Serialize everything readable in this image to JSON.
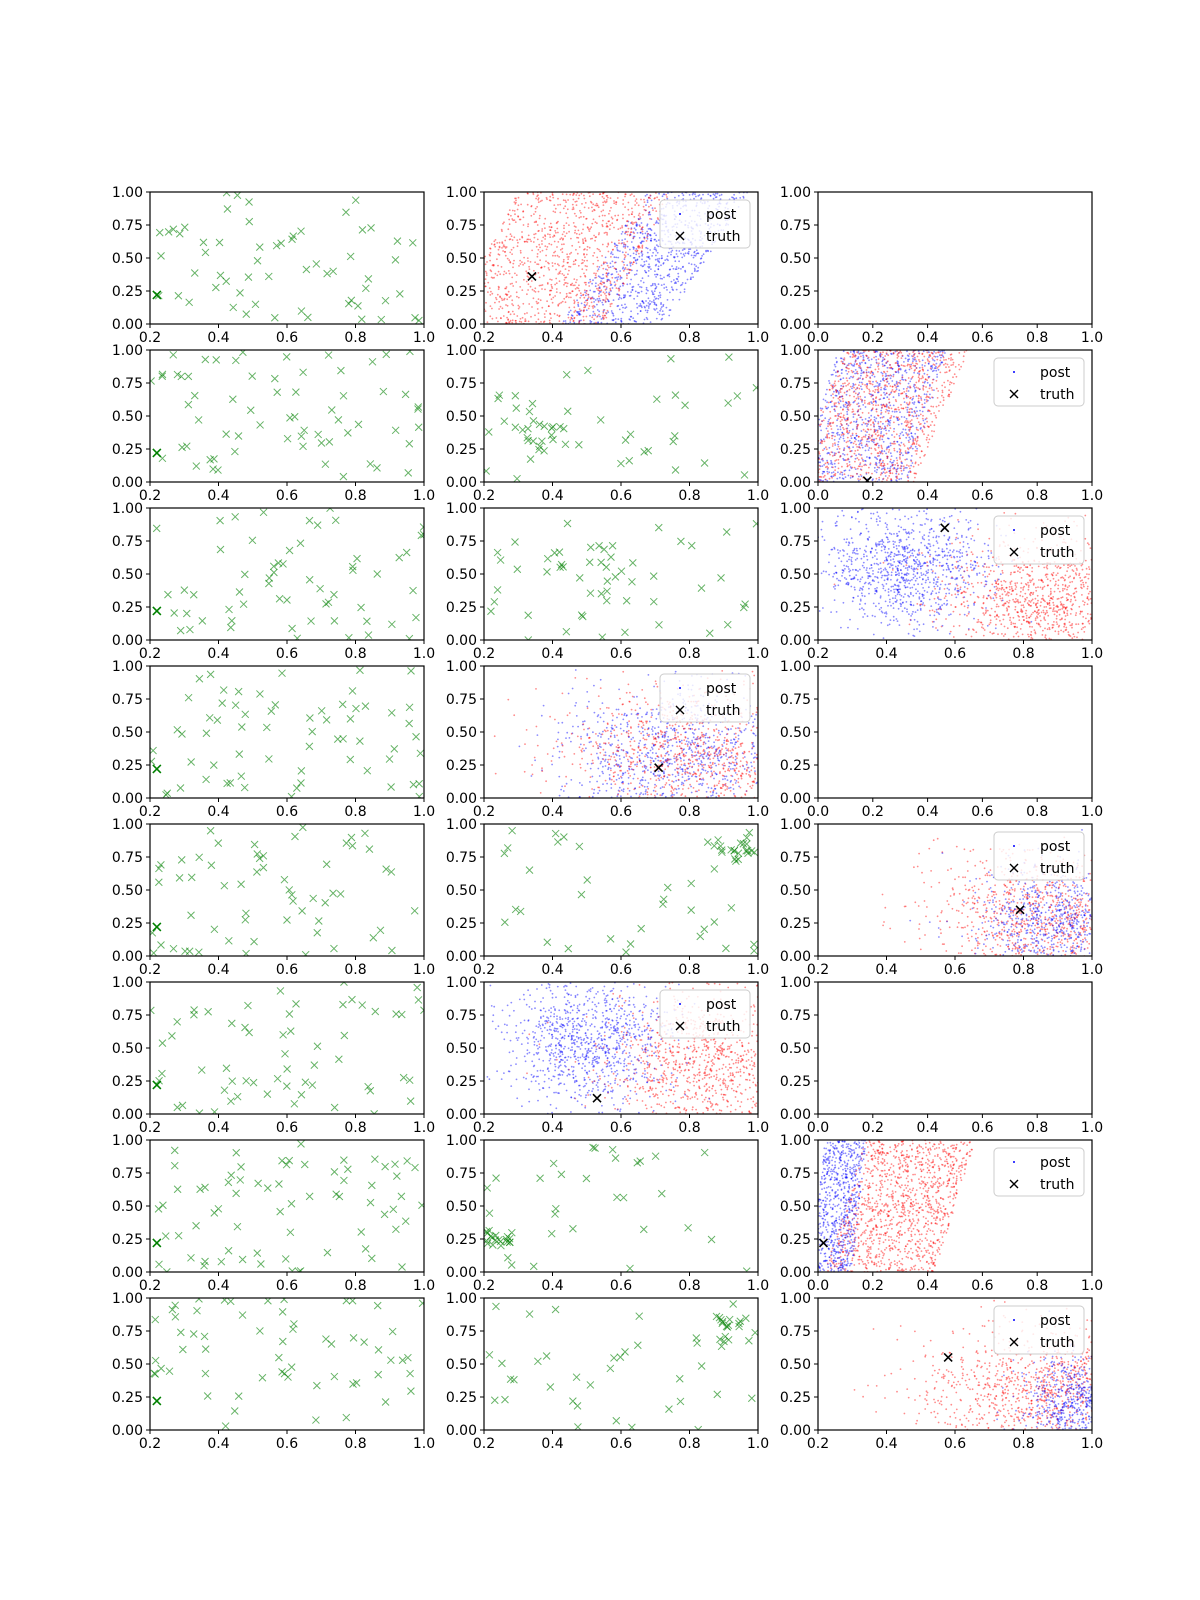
{
  "figure": {
    "type": "scatter-grid",
    "rows": 8,
    "cols": 3
  },
  "colors": {
    "samples": "#008000",
    "truth": "#000000",
    "post_blue": "#0000ff",
    "post_red": "#ff0000",
    "axes": "#000000",
    "background": "#ffffff"
  },
  "legend": {
    "post_label": "post",
    "truth_label": "truth"
  },
  "chart_data": [
    {
      "row": 0,
      "col": 0,
      "type": "scatter",
      "xlim": [
        0.2,
        1.0
      ],
      "ylim": [
        0.0,
        1.0
      ],
      "xticks": [
        "0.2",
        "0.4",
        "0.6",
        "0.8",
        "1.0"
      ],
      "yticks": [
        "0.00",
        "0.25",
        "0.50",
        "0.75",
        "1.00"
      ],
      "series": [
        {
          "name": "samples",
          "color": "#008000",
          "n": 60,
          "seed": 11
        }
      ],
      "truth": [
        0.22,
        0.22
      ],
      "legend": false
    },
    {
      "row": 0,
      "col": 1,
      "type": "scatter",
      "xlim": [
        0.2,
        1.0
      ],
      "ylim": [
        0.0,
        1.0
      ],
      "xticks": [
        "0.2",
        "0.4",
        "0.6",
        "0.8",
        "1.0"
      ],
      "yticks": [
        "0.00",
        "0.25",
        "0.50",
        "0.75",
        "1.00"
      ],
      "series": [
        {
          "name": "post",
          "color": "#0000ff",
          "n": 900,
          "kind": "band",
          "seed": 21,
          "xmin": 0.55,
          "xmax": 0.85,
          "tilt": 0.25
        },
        {
          "name": "post",
          "color": "#ff0000",
          "n": 1100,
          "kind": "band",
          "seed": 22,
          "xmin": 0.2,
          "xmax": 0.65,
          "tilt": 0.2
        }
      ],
      "truth": [
        0.34,
        0.36
      ],
      "legend": true
    },
    {
      "row": 0,
      "col": 2,
      "type": "empty",
      "xlim": [
        0.0,
        1.0
      ],
      "ylim": [
        0.0,
        1.0
      ],
      "xticks": [
        "0.0",
        "0.2",
        "0.4",
        "0.6",
        "0.8",
        "1.0"
      ],
      "yticks": [
        "0.00",
        "0.25",
        "0.50",
        "0.75",
        "1.00"
      ],
      "series": [],
      "legend": false
    },
    {
      "row": 1,
      "col": 0,
      "type": "scatter",
      "xlim": [
        0.2,
        1.0
      ],
      "ylim": [
        0.0,
        1.0
      ],
      "xticks": [
        "0.2",
        "0.4",
        "0.6",
        "0.8",
        "1.0"
      ],
      "yticks": [
        "0.00",
        "0.25",
        "0.50",
        "0.75",
        "1.00"
      ],
      "series": [
        {
          "name": "samples",
          "color": "#008000",
          "n": 65,
          "seed": 31
        }
      ],
      "truth": [
        0.22,
        0.22
      ],
      "legend": false
    },
    {
      "row": 1,
      "col": 1,
      "type": "scatter",
      "xlim": [
        0.2,
        1.0
      ],
      "ylim": [
        0.0,
        1.0
      ],
      "xticks": [
        "0.2",
        "0.4",
        "0.6",
        "0.8",
        "1.0"
      ],
      "yticks": [
        "0.00",
        "0.25",
        "0.50",
        "0.75",
        "1.00"
      ],
      "series": [
        {
          "name": "samples",
          "color": "#008000",
          "n": 55,
          "seed": 32,
          "cluster": [
            0.38,
            0.38,
            0.06,
            0.08
          ]
        }
      ],
      "legend": false
    },
    {
      "row": 1,
      "col": 2,
      "type": "scatter",
      "xlim": [
        0.0,
        1.0
      ],
      "ylim": [
        0.0,
        1.0
      ],
      "xticks": [
        "0.0",
        "0.2",
        "0.4",
        "0.6",
        "0.8",
        "1.0"
      ],
      "yticks": [
        "0.00",
        "0.25",
        "0.50",
        "0.75",
        "1.00"
      ],
      "series": [
        {
          "name": "post",
          "color": "#0000ff",
          "n": 900,
          "kind": "band",
          "seed": 41,
          "xmin": 0.0,
          "xmax": 0.4,
          "tilt": 0.15
        },
        {
          "name": "post",
          "color": "#ff0000",
          "n": 1000,
          "kind": "band",
          "seed": 42,
          "xmin": 0.0,
          "xmax": 0.45,
          "tilt": 0.2
        }
      ],
      "truth": [
        0.18,
        0.01
      ],
      "legend": true
    },
    {
      "row": 2,
      "col": 0,
      "type": "scatter",
      "xlim": [
        0.2,
        1.0
      ],
      "ylim": [
        0.0,
        1.0
      ],
      "xticks": [
        "0.2",
        "0.4",
        "0.6",
        "0.8",
        "1.0"
      ],
      "yticks": [
        "0.00",
        "0.25",
        "0.50",
        "0.75",
        "1.00"
      ],
      "series": [
        {
          "name": "samples",
          "color": "#008000",
          "n": 60,
          "seed": 51
        }
      ],
      "truth": [
        0.22,
        0.22
      ],
      "legend": false
    },
    {
      "row": 2,
      "col": 1,
      "type": "scatter",
      "xlim": [
        0.2,
        1.0
      ],
      "ylim": [
        0.0,
        1.0
      ],
      "xticks": [
        "0.2",
        "0.4",
        "0.6",
        "0.8",
        "1.0"
      ],
      "yticks": [
        "0.00",
        "0.25",
        "0.50",
        "0.75",
        "1.00"
      ],
      "series": [
        {
          "name": "samples",
          "color": "#008000",
          "n": 55,
          "seed": 52,
          "cluster": [
            0.5,
            0.55,
            0.08,
            0.1
          ]
        }
      ],
      "legend": false
    },
    {
      "row": 2,
      "col": 2,
      "type": "scatter",
      "xlim": [
        0.2,
        1.0
      ],
      "ylim": [
        0.0,
        1.0
      ],
      "xticks": [
        "0.2",
        "0.4",
        "0.6",
        "0.8",
        "1.0"
      ],
      "yticks": [
        "0.00",
        "0.25",
        "0.50",
        "0.75",
        "1.00"
      ],
      "series": [
        {
          "name": "post",
          "color": "#ff0000",
          "n": 1100,
          "kind": "blob",
          "seed": 61,
          "cx": 0.85,
          "cy": 0.3,
          "sx": 0.15,
          "sy": 0.25
        },
        {
          "name": "post",
          "color": "#0000ff",
          "n": 1000,
          "kind": "blob",
          "seed": 62,
          "cx": 0.45,
          "cy": 0.55,
          "sx": 0.12,
          "sy": 0.22
        }
      ],
      "truth": [
        0.57,
        0.85
      ],
      "legend": true
    },
    {
      "row": 3,
      "col": 0,
      "type": "scatter",
      "xlim": [
        0.2,
        1.0
      ],
      "ylim": [
        0.0,
        1.0
      ],
      "xticks": [
        "0.2",
        "0.4",
        "0.6",
        "0.8",
        "1.0"
      ],
      "yticks": [
        "0.00",
        "0.25",
        "0.50",
        "0.75",
        "1.00"
      ],
      "series": [
        {
          "name": "samples",
          "color": "#008000",
          "n": 65,
          "seed": 71
        }
      ],
      "truth": [
        0.22,
        0.22
      ],
      "legend": false
    },
    {
      "row": 3,
      "col": 1,
      "type": "scatter",
      "xlim": [
        0.2,
        1.0
      ],
      "ylim": [
        0.0,
        1.0
      ],
      "xticks": [
        "0.2",
        "0.4",
        "0.6",
        "0.8",
        "1.0"
      ],
      "yticks": [
        "0.00",
        "0.25",
        "0.50",
        "0.75",
        "1.00"
      ],
      "series": [
        {
          "name": "post",
          "color": "#0000ff",
          "n": 900,
          "kind": "blob",
          "seed": 81,
          "cx": 0.75,
          "cy": 0.35,
          "sx": 0.16,
          "sy": 0.25
        },
        {
          "name": "post",
          "color": "#ff0000",
          "n": 1000,
          "kind": "blob",
          "seed": 82,
          "cx": 0.8,
          "cy": 0.3,
          "sx": 0.2,
          "sy": 0.27
        }
      ],
      "truth": [
        0.71,
        0.23
      ],
      "legend": true
    },
    {
      "row": 3,
      "col": 2,
      "type": "empty",
      "xlim": [
        0.0,
        1.0
      ],
      "ylim": [
        0.0,
        1.0
      ],
      "xticks": [
        "0.0",
        "0.2",
        "0.4",
        "0.6",
        "0.8",
        "1.0"
      ],
      "yticks": [
        "0.00",
        "0.25",
        "0.50",
        "0.75",
        "1.00"
      ],
      "series": [],
      "legend": false
    },
    {
      "row": 4,
      "col": 0,
      "type": "scatter",
      "xlim": [
        0.2,
        1.0
      ],
      "ylim": [
        0.0,
        1.0
      ],
      "xticks": [
        "0.2",
        "0.4",
        "0.6",
        "0.8",
        "1.0"
      ],
      "yticks": [
        "0.00",
        "0.25",
        "0.50",
        "0.75",
        "1.00"
      ],
      "series": [
        {
          "name": "samples",
          "color": "#008000",
          "n": 60,
          "seed": 91
        }
      ],
      "truth": [
        0.22,
        0.22
      ],
      "legend": false
    },
    {
      "row": 4,
      "col": 1,
      "type": "scatter",
      "xlim": [
        0.2,
        1.0
      ],
      "ylim": [
        0.0,
        1.0
      ],
      "xticks": [
        "0.2",
        "0.4",
        "0.6",
        "0.8",
        "1.0"
      ],
      "yticks": [
        "0.00",
        "0.25",
        "0.50",
        "0.75",
        "1.00"
      ],
      "series": [
        {
          "name": "samples",
          "color": "#008000",
          "n": 55,
          "seed": 92,
          "cluster": [
            0.93,
            0.8,
            0.05,
            0.06
          ]
        }
      ],
      "legend": false
    },
    {
      "row": 4,
      "col": 2,
      "type": "scatter",
      "xlim": [
        0.2,
        1.0
      ],
      "ylim": [
        0.0,
        1.0
      ],
      "xticks": [
        "0.2",
        "0.4",
        "0.6",
        "0.8",
        "1.0"
      ],
      "yticks": [
        "0.00",
        "0.25",
        "0.50",
        "0.75",
        "1.00"
      ],
      "series": [
        {
          "name": "post",
          "color": "#ff0000",
          "n": 1000,
          "kind": "blob",
          "seed": 101,
          "cx": 0.85,
          "cy": 0.3,
          "sx": 0.16,
          "sy": 0.26
        },
        {
          "name": "post",
          "color": "#0000ff",
          "n": 800,
          "kind": "blob",
          "seed": 102,
          "cx": 0.9,
          "cy": 0.25,
          "sx": 0.12,
          "sy": 0.22
        }
      ],
      "truth": [
        0.79,
        0.35
      ],
      "legend": true
    },
    {
      "row": 5,
      "col": 0,
      "type": "scatter",
      "xlim": [
        0.2,
        1.0
      ],
      "ylim": [
        0.0,
        1.0
      ],
      "xticks": [
        "0.2",
        "0.4",
        "0.6",
        "0.8",
        "1.0"
      ],
      "yticks": [
        "0.00",
        "0.25",
        "0.50",
        "0.75",
        "1.00"
      ],
      "series": [
        {
          "name": "samples",
          "color": "#008000",
          "n": 60,
          "seed": 111
        }
      ],
      "truth": [
        0.22,
        0.22
      ],
      "legend": false
    },
    {
      "row": 5,
      "col": 1,
      "type": "scatter",
      "xlim": [
        0.2,
        1.0
      ],
      "ylim": [
        0.0,
        1.0
      ],
      "xticks": [
        "0.2",
        "0.4",
        "0.6",
        "0.8",
        "1.0"
      ],
      "yticks": [
        "0.00",
        "0.25",
        "0.50",
        "0.75",
        "1.00"
      ],
      "series": [
        {
          "name": "post",
          "color": "#ff0000",
          "n": 1100,
          "kind": "blob",
          "seed": 121,
          "cx": 0.85,
          "cy": 0.35,
          "sx": 0.15,
          "sy": 0.3
        },
        {
          "name": "post",
          "color": "#0000ff",
          "n": 1000,
          "kind": "blob",
          "seed": 122,
          "cx": 0.5,
          "cy": 0.55,
          "sx": 0.12,
          "sy": 0.25
        }
      ],
      "truth": [
        0.53,
        0.12
      ],
      "legend": true
    },
    {
      "row": 5,
      "col": 2,
      "type": "empty",
      "xlim": [
        0.0,
        1.0
      ],
      "ylim": [
        0.0,
        1.0
      ],
      "xticks": [
        "0.0",
        "0.2",
        "0.4",
        "0.6",
        "0.8",
        "1.0"
      ],
      "yticks": [
        "0.00",
        "0.25",
        "0.50",
        "0.75",
        "1.00"
      ],
      "series": [],
      "legend": false
    },
    {
      "row": 6,
      "col": 0,
      "type": "scatter",
      "xlim": [
        0.2,
        1.0
      ],
      "ylim": [
        0.0,
        1.0
      ],
      "xticks": [
        "0.2",
        "0.4",
        "0.6",
        "0.8",
        "1.0"
      ],
      "yticks": [
        "0.00",
        "0.25",
        "0.50",
        "0.75",
        "1.00"
      ],
      "series": [
        {
          "name": "samples",
          "color": "#008000",
          "n": 70,
          "seed": 131
        }
      ],
      "truth": [
        0.22,
        0.22
      ],
      "legend": false
    },
    {
      "row": 6,
      "col": 1,
      "type": "scatter",
      "xlim": [
        0.2,
        1.0
      ],
      "ylim": [
        0.0,
        1.0
      ],
      "xticks": [
        "0.2",
        "0.4",
        "0.6",
        "0.8",
        "1.0"
      ],
      "yticks": [
        "0.00",
        "0.25",
        "0.50",
        "0.75",
        "1.00"
      ],
      "series": [
        {
          "name": "samples",
          "color": "#008000",
          "n": 50,
          "seed": 132,
          "cluster": [
            0.25,
            0.25,
            0.04,
            0.03
          ]
        }
      ],
      "legend": false
    },
    {
      "row": 6,
      "col": 2,
      "type": "scatter",
      "xlim": [
        0.0,
        1.0
      ],
      "ylim": [
        0.0,
        1.0
      ],
      "xticks": [
        "0.0",
        "0.2",
        "0.4",
        "0.6",
        "0.8",
        "1.0"
      ],
      "yticks": [
        "0.00",
        "0.25",
        "0.50",
        "0.75",
        "1.00"
      ],
      "series": [
        {
          "name": "post",
          "color": "#ff0000",
          "n": 1200,
          "kind": "band",
          "seed": 141,
          "xmin": 0.1,
          "xmax": 0.5,
          "tilt": 0.15
        },
        {
          "name": "post",
          "color": "#0000ff",
          "n": 700,
          "kind": "band",
          "seed": 142,
          "xmin": 0.0,
          "xmax": 0.15,
          "tilt": 0.05
        }
      ],
      "truth": [
        0.02,
        0.22
      ],
      "legend": true
    },
    {
      "row": 7,
      "col": 0,
      "type": "scatter",
      "xlim": [
        0.2,
        1.0
      ],
      "ylim": [
        0.0,
        1.0
      ],
      "xticks": [
        "0.2",
        "0.4",
        "0.6",
        "0.8",
        "1.0"
      ],
      "yticks": [
        "0.00",
        "0.25",
        "0.50",
        "0.75",
        "1.00"
      ],
      "series": [
        {
          "name": "samples",
          "color": "#008000",
          "n": 60,
          "seed": 151
        }
      ],
      "truth": [
        0.22,
        0.22
      ],
      "legend": false
    },
    {
      "row": 7,
      "col": 1,
      "type": "scatter",
      "xlim": [
        0.2,
        1.0
      ],
      "ylim": [
        0.0,
        1.0
      ],
      "xticks": [
        "0.2",
        "0.4",
        "0.6",
        "0.8",
        "1.0"
      ],
      "yticks": [
        "0.00",
        "0.25",
        "0.50",
        "0.75",
        "1.00"
      ],
      "series": [
        {
          "name": "samples",
          "color": "#008000",
          "n": 55,
          "seed": 152,
          "cluster": [
            0.92,
            0.75,
            0.05,
            0.1
          ]
        }
      ],
      "legend": false
    },
    {
      "row": 7,
      "col": 2,
      "type": "scatter",
      "xlim": [
        0.2,
        1.0
      ],
      "ylim": [
        0.0,
        1.0
      ],
      "xticks": [
        "0.2",
        "0.4",
        "0.6",
        "0.8",
        "1.0"
      ],
      "yticks": [
        "0.00",
        "0.25",
        "0.50",
        "0.75",
        "1.00"
      ],
      "series": [
        {
          "name": "post",
          "color": "#ff0000",
          "n": 1100,
          "kind": "blob",
          "seed": 161,
          "cx": 0.85,
          "cy": 0.3,
          "sx": 0.17,
          "sy": 0.25
        },
        {
          "name": "post",
          "color": "#0000ff",
          "n": 700,
          "kind": "blob",
          "seed": 162,
          "cx": 0.95,
          "cy": 0.2,
          "sx": 0.08,
          "sy": 0.2
        }
      ],
      "truth": [
        0.58,
        0.55
      ],
      "legend": true
    }
  ]
}
